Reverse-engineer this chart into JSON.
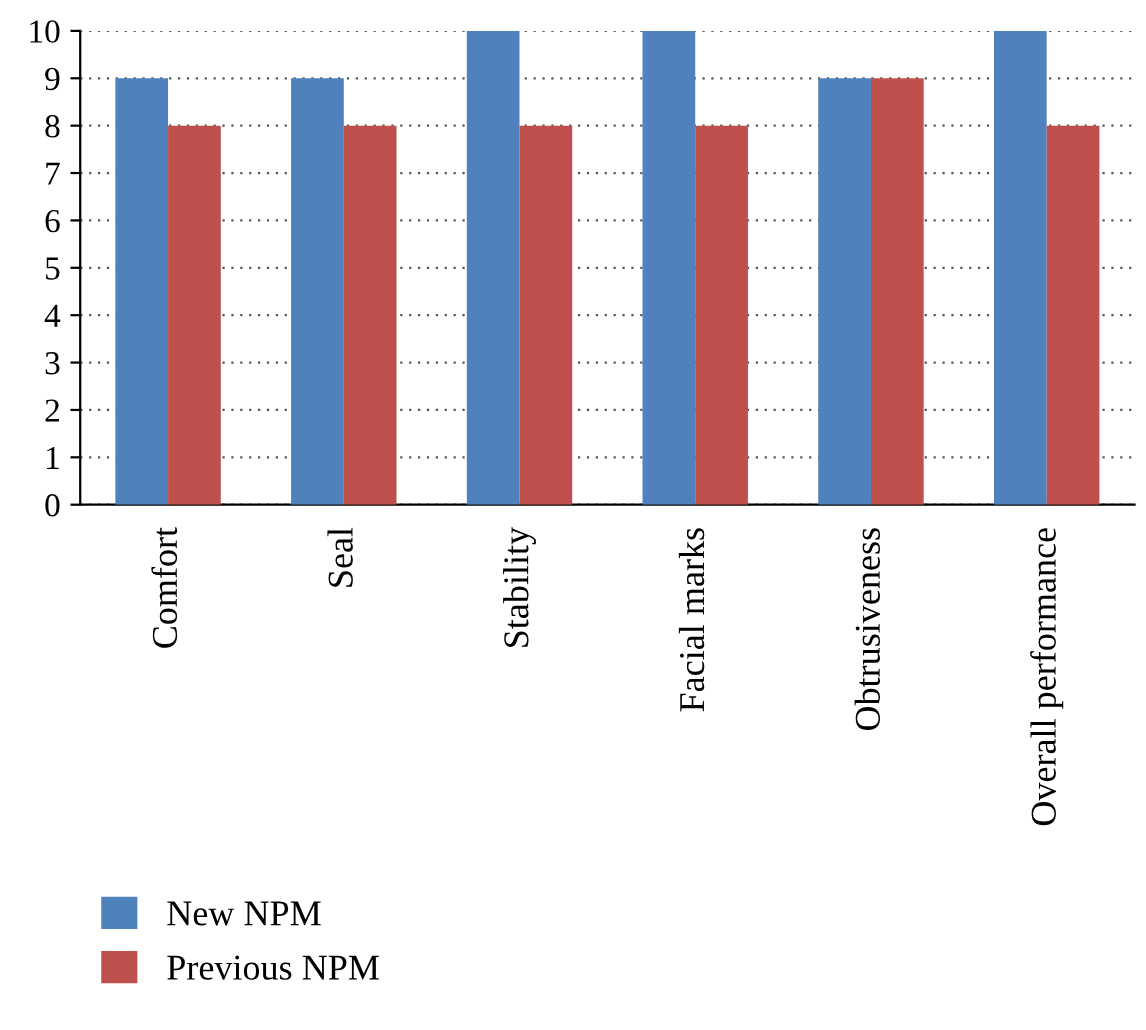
{
  "chart_data": {
    "type": "bar",
    "categories": [
      "Comfort",
      "Seal",
      "Stability",
      "Facial marks",
      "Obtrusiveness",
      "Overall performance"
    ],
    "series": [
      {
        "name": "New NPM",
        "color": "#4f81bd",
        "values": [
          9,
          9,
          10,
          10,
          9,
          10
        ]
      },
      {
        "name": "Previous NPM",
        "color": "#c0504d",
        "values": [
          8,
          8,
          8,
          8,
          9,
          8
        ]
      }
    ],
    "ylim": [
      0,
      10
    ],
    "yticks": [
      0,
      1,
      2,
      3,
      4,
      5,
      6,
      7,
      8,
      9,
      10
    ],
    "grid": "y",
    "legend": "bottom"
  }
}
